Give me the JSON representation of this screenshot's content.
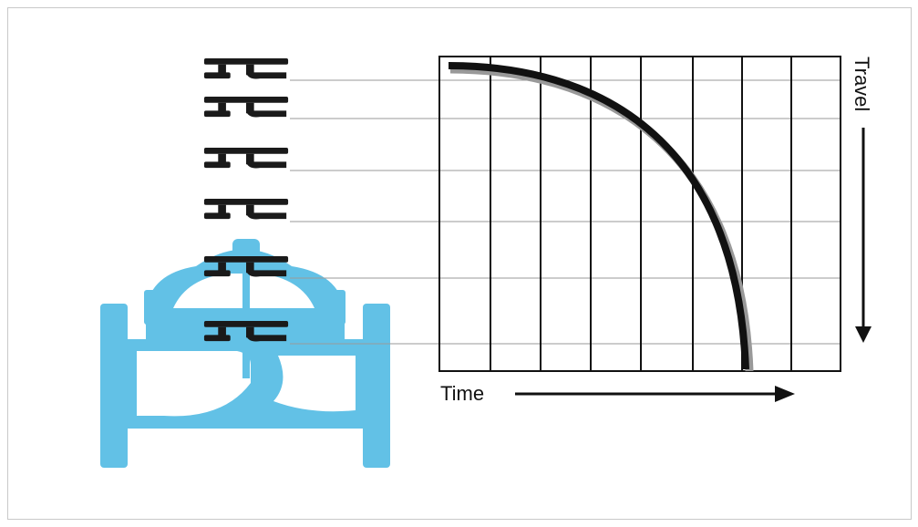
{
  "labels": {
    "travel": "Travel",
    "time": "Time"
  }
}
